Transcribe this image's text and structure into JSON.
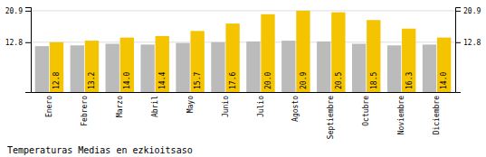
{
  "chart_data": {
    "type": "bar",
    "title": "Temperaturas Medias en ezkioitsaso",
    "categories": [
      "Enero",
      "Febrero",
      "Marzo",
      "Abril",
      "Mayo",
      "Junio",
      "Julio",
      "Agosto",
      "Septiembre",
      "Octubre",
      "Noviembre",
      "Diciembre"
    ],
    "series": [
      {
        "color": "#BBBBBB",
        "values": [
          11.8,
          12.0,
          12.4,
          12.2,
          12.6,
          12.8,
          13.0,
          13.2,
          13.0,
          12.4,
          12.0,
          12.2
        ]
      },
      {
        "color": "#F5C400",
        "values": [
          12.8,
          13.2,
          14.0,
          14.4,
          15.7,
          17.6,
          20.0,
          20.9,
          20.5,
          18.5,
          16.3,
          14.0
        ],
        "data_labels": true,
        "value_labels": [
          "12.8",
          "13.2",
          "14.0",
          "14.4",
          "15.7",
          "17.6",
          "20.0",
          "20.9",
          "20.5",
          "18.5",
          "16.3",
          "14.0"
        ]
      }
    ],
    "ylim": [
      0,
      21.8
    ],
    "yticks": [
      12.8,
      20.9
    ],
    "y2lim": [
      0,
      21.8
    ],
    "y2ticks": [
      12.8,
      20.9
    ],
    "grid": true
  }
}
